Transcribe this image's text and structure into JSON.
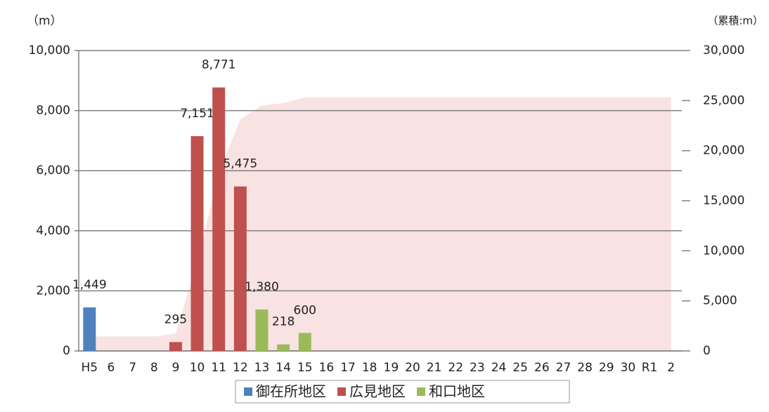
{
  "chart_data": {
    "type": "bar",
    "y_axis_label": "（m）",
    "y2_axis_label": "（累積:m）",
    "categories": [
      "H5",
      "6",
      "7",
      "8",
      "9",
      "10",
      "11",
      "12",
      "13",
      "14",
      "15",
      "16",
      "17",
      "18",
      "19",
      "20",
      "21",
      "22",
      "23",
      "24",
      "25",
      "26",
      "27",
      "28",
      "29",
      "30",
      "R1",
      "2"
    ],
    "series": [
      {
        "name": "御在所地区",
        "color": "#4f81bd",
        "values": [
          1449,
          null,
          null,
          null,
          null,
          null,
          null,
          null,
          null,
          null,
          null,
          null,
          null,
          null,
          null,
          null,
          null,
          null,
          null,
          null,
          null,
          null,
          null,
          null,
          null,
          null,
          null,
          null
        ],
        "value_labels": [
          "1,449",
          null,
          null,
          null,
          null,
          null,
          null,
          null,
          null,
          null,
          null,
          null,
          null,
          null,
          null,
          null,
          null,
          null,
          null,
          null,
          null,
          null,
          null,
          null,
          null,
          null,
          null,
          null
        ]
      },
      {
        "name": "広見地区",
        "color": "#c0504d",
        "values": [
          null,
          null,
          null,
          null,
          295,
          7151,
          8771,
          5475,
          null,
          null,
          null,
          null,
          null,
          null,
          null,
          null,
          null,
          null,
          null,
          null,
          null,
          null,
          null,
          null,
          null,
          null,
          null,
          null
        ],
        "value_labels": [
          null,
          null,
          null,
          null,
          "295",
          "7,151",
          "8,771",
          "5,475",
          null,
          null,
          null,
          null,
          null,
          null,
          null,
          null,
          null,
          null,
          null,
          null,
          null,
          null,
          null,
          null,
          null,
          null,
          null,
          null
        ]
      },
      {
        "name": "和口地区",
        "color": "#9bbb59",
        "values": [
          null,
          null,
          null,
          null,
          null,
          null,
          null,
          null,
          1380,
          218,
          600,
          null,
          null,
          null,
          null,
          null,
          null,
          null,
          null,
          null,
          null,
          null,
          null,
          null,
          null,
          null,
          null,
          null
        ],
        "value_labels": [
          null,
          null,
          null,
          null,
          null,
          null,
          null,
          null,
          "1,380",
          "218",
          "600",
          null,
          null,
          null,
          null,
          null,
          null,
          null,
          null,
          null,
          null,
          null,
          null,
          null,
          null,
          null,
          null,
          null
        ]
      }
    ],
    "cumulative": {
      "color": "#f9e2e2",
      "axis": "y2",
      "values": [
        1449,
        1449,
        1449,
        1449,
        1744,
        8895,
        17666,
        23141,
        24521,
        24739,
        25339,
        25339,
        25339,
        25339,
        25339,
        25339,
        25339,
        25339,
        25339,
        25339,
        25339,
        25339,
        25339,
        25339,
        25339,
        25339,
        25339,
        25339
      ]
    },
    "ylim": [
      0,
      10000
    ],
    "yticks": [
      0,
      {
        "value": 2000,
        "label": "2,000"
      },
      {
        "value": 4000,
        "label": "4,000"
      },
      {
        "value": 6000,
        "label": "6,000"
      },
      {
        "value": 8000,
        "label": "8,000"
      },
      {
        "value": 10000,
        "label": "10,000"
      }
    ],
    "y2lim": [
      0,
      30000
    ],
    "y2ticks": [
      0,
      {
        "value": 5000,
        "label": "5,000"
      },
      {
        "value": 10000,
        "label": "10,000"
      },
      {
        "value": 15000,
        "label": "15,000"
      },
      {
        "value": 20000,
        "label": "20,000"
      },
      {
        "value": 25000,
        "label": "25,000"
      },
      {
        "value": 30000,
        "label": "30,000"
      }
    ],
    "grid": true,
    "legend": "bottom"
  }
}
